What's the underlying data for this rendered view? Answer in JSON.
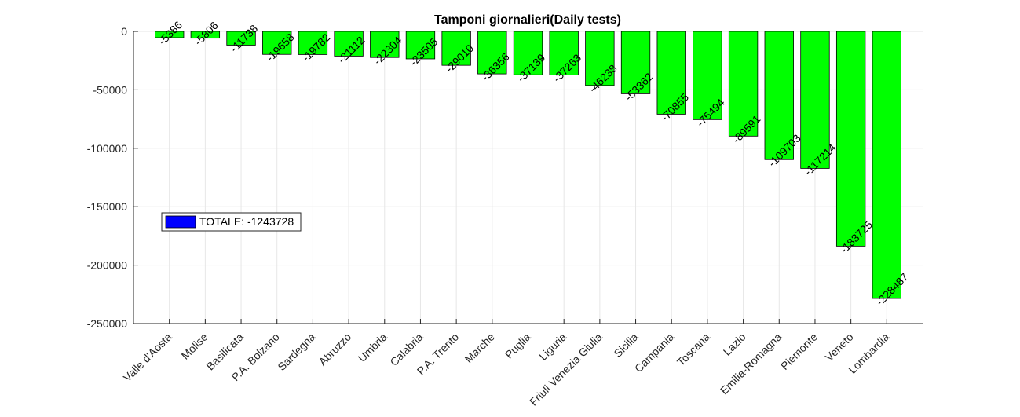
{
  "chart_data": {
    "type": "bar",
    "title": "Tamponi giornalieri(Daily tests)",
    "xlabel": "",
    "ylabel": "",
    "categories": [
      "Valle d'Aosta",
      "Molise",
      "Basilicata",
      "P.A. Bolzano",
      "Sardegna",
      "Abruzzo",
      "Umbria",
      "Calabria",
      "P.A. Trento",
      "Marche",
      "Puglia",
      "Liguria",
      "Friuli Venezia Giulia",
      "Sicilia",
      "Campania",
      "Toscana",
      "Lazio",
      "Emilia-Romagna",
      "Piemonte",
      "Veneto",
      "Lombardia"
    ],
    "values": [
      -5386,
      -5806,
      -11738,
      -19658,
      -19782,
      -21112,
      -22304,
      -23505,
      -29010,
      -36356,
      -37139,
      -37263,
      -46238,
      -53362,
      -70855,
      -75494,
      -89591,
      -109703,
      -117214,
      -183725,
      -228487
    ],
    "ylim": [
      -250000,
      0
    ],
    "yticks": [
      0,
      -50000,
      -100000,
      -150000,
      -200000,
      -250000
    ],
    "grid": true,
    "bar_color": "#00ff00",
    "legend": {
      "label": "TOTALE: -1243728",
      "color": "#0000ff",
      "placement": "left"
    }
  }
}
